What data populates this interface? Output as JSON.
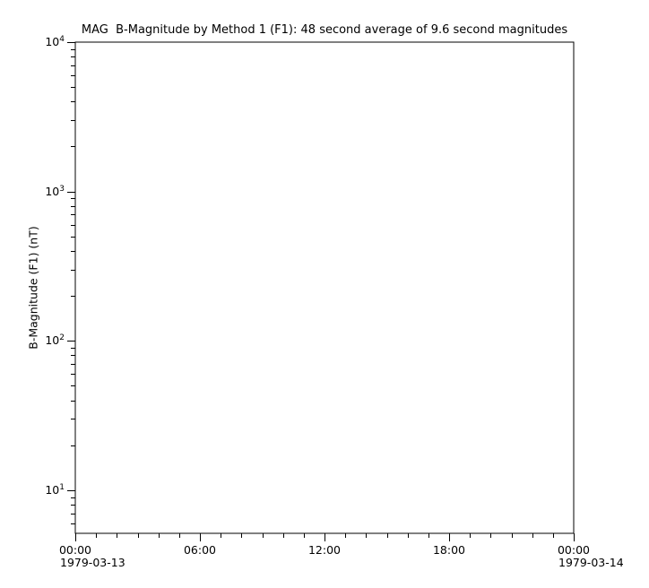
{
  "chart_data": {
    "type": "line",
    "title": "MAG  B-Magnitude by Method 1 (F1): 48 second average of 9.6 second magnitudes",
    "xlabel": "",
    "ylabel": "B-Magnitude (F1) (nT)",
    "yscale": "log",
    "ylim": [
      5.15,
      10000
    ],
    "xlim_hours": [
      0,
      24
    ],
    "grid": false,
    "series": [],
    "y_major_ticks": [
      {
        "value": 10000,
        "base": "10",
        "exp": "4"
      },
      {
        "value": 1000,
        "base": "10",
        "exp": "3"
      },
      {
        "value": 100,
        "base": "10",
        "exp": "2"
      },
      {
        "value": 10,
        "base": "10",
        "exp": "1"
      }
    ],
    "y_minor_ticks": "log decades, mantissas 2-9 within ylim",
    "x_major_ticks": [
      {
        "hour": 0,
        "label": "00:00",
        "date": "1979-03-13"
      },
      {
        "hour": 6,
        "label": "06:00"
      },
      {
        "hour": 12,
        "label": "12:00"
      },
      {
        "hour": 18,
        "label": "18:00"
      },
      {
        "hour": 24,
        "label": "00:00",
        "date": "1979-03-14"
      }
    ],
    "x_minor_interval_hours": 1
  }
}
